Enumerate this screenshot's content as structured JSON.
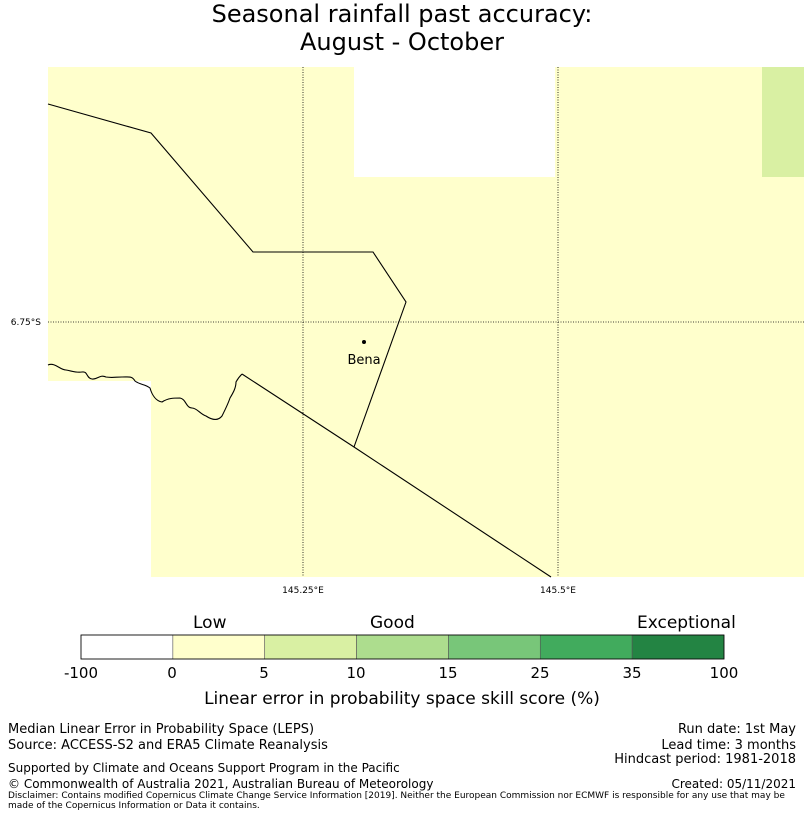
{
  "title": {
    "line1": "Seasonal rainfall past accuracy:",
    "line2": "August - October"
  },
  "map": {
    "place": "Bena",
    "lat_label": "6.75°S",
    "lon_labels": [
      "145.25°E",
      "145.5°E"
    ]
  },
  "colorbar": {
    "categories": [
      "Low",
      "Good",
      "Exceptional"
    ],
    "ticks": [
      "-100",
      "0",
      "5",
      "10",
      "15",
      "25",
      "35",
      "100"
    ],
    "colors": [
      "#ffffff",
      "#ffffcc",
      "#d9f0a3",
      "#addd8e",
      "#78c679",
      "#41ab5d",
      "#238443"
    ],
    "title": "Linear error in probability space skill score (%)"
  },
  "footer": {
    "method": "Median Linear Error in Probability Space (LEPS)",
    "source": "Source: ACCESS-S2 and ERA5 Climate Reanalysis",
    "run_date": "Run date: 1st May",
    "lead_time": "Lead time: 3 months",
    "hindcast": "Hindcast period: 1981-2018",
    "support": "Supported by Climate and Oceans Support Program in the Pacific",
    "copyright": "© Commonwealth of Australia 2021, Australian Bureau of Meteorology",
    "created": "Created: 05/11/2021",
    "disclaimer": "Disclaimer: Contains modified Copernicus Climate Change Service Information [2019]. Neither the European Commission nor ECMWF is responsible for any use that may be made of the Copernicus Information or Data it contains."
  }
}
